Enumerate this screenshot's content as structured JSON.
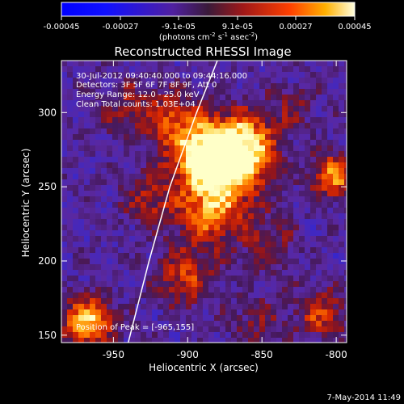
{
  "colorbar": {
    "ticks": [
      "-0.00045",
      "-0.00027",
      "-9.1e-05",
      "9.1e-05",
      "0.00027",
      "0.00045"
    ],
    "unit_main": "(photons cm",
    "unit_exp1": "-2",
    "unit_mid": " s",
    "unit_exp2": "-1",
    "unit_tail": " asec",
    "unit_exp3": "-2",
    "unit_close": ")"
  },
  "chart_data": {
    "type": "heatmap",
    "title": "Reconstructed RHESSI Image",
    "xlabel": "Heliocentric X (arcsec)",
    "ylabel": "Heliocentric Y (arcsec)",
    "xlim": [
      -985,
      -793
    ],
    "ylim": [
      145,
      335
    ],
    "x_ticks": [
      -950,
      -900,
      -850,
      -800
    ],
    "y_ticks": [
      150,
      200,
      250,
      300
    ],
    "colorbar_range": [
      -0.00045,
      0.00045
    ],
    "limb_curve": [
      [
        -940,
        145
      ],
      [
        -926,
        200
      ],
      [
        -912,
        250
      ],
      [
        -894,
        300
      ],
      [
        -880,
        335
      ]
    ],
    "peak_position": [
      -965,
      155
    ]
  },
  "overlay": {
    "line1": "30-Jul-2012 09:40:40.000 to 09:44:16.000",
    "line2": "Detectors: 3F 5F 6F 7F 8F 9F, Att 0",
    "line3": "Energy Range: 12.0 - 25.0 keV",
    "line4": "Clean     Total counts: 1.03E+04",
    "peak": "Position of Peak = [-965,155]"
  },
  "footer": {
    "timestamp": "7-May-2014 11:49"
  }
}
